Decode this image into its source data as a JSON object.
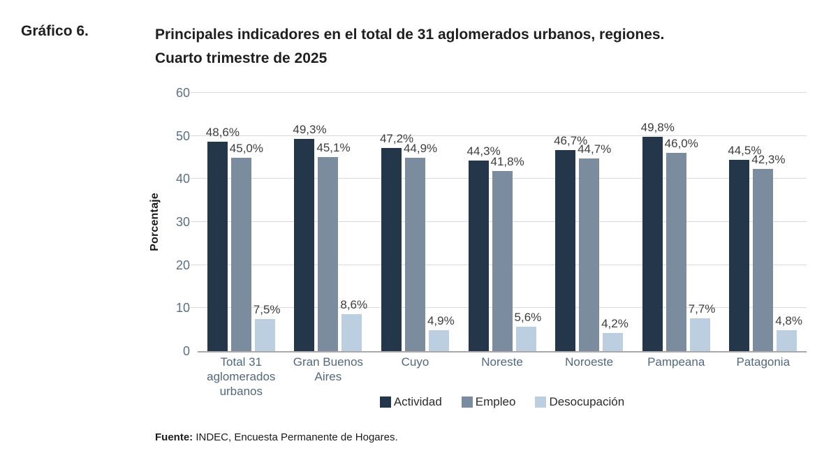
{
  "header": {
    "figure_label": "Gráfico 6.",
    "title_line1": "Principales indicadores en el total de 31 aglomerados urbanos, regiones.",
    "title_line2": "Cuarto trimestre de 2025"
  },
  "footer": {
    "source_label": "Fuente:",
    "source_text": " INDEC, Encuesta Permanente de Hogares."
  },
  "colors": {
    "actividad": "#24374a",
    "empleo": "#7c8c9f",
    "desocupacion": "#bccfe0",
    "gridline": "#d9d9d9",
    "axis_text": "#51687e",
    "data_label": "#3d3d3d"
  },
  "chart_data": {
    "type": "bar",
    "title": "Principales indicadores en el total de 31 aglomerados urbanos, regiones. Cuarto trimestre de 2025",
    "xlabel": "",
    "ylabel": "Porcentaje",
    "ylim": [
      0,
      60
    ],
    "yticks": [
      0,
      10,
      20,
      30,
      40,
      50,
      60
    ],
    "grid": true,
    "legend_position": "bottom",
    "categories": [
      "Total 31 aglomerados urbanos",
      "Gran Buenos Aires",
      "Cuyo",
      "Noreste",
      "Noroeste",
      "Pampeana",
      "Patagonia"
    ],
    "series": [
      {
        "name": "Actividad",
        "color": "#24374a",
        "values": [
          48.6,
          49.3,
          47.2,
          44.3,
          46.7,
          49.8,
          44.5
        ],
        "labels": [
          "48,6%",
          "49,3%",
          "47,2%",
          "44,3%",
          "46,7%",
          "49,8%",
          "44,5%"
        ]
      },
      {
        "name": "Empleo",
        "color": "#7c8c9f",
        "values": [
          45.0,
          45.1,
          44.9,
          41.8,
          44.7,
          46.0,
          42.3
        ],
        "labels": [
          "45,0%",
          "45,1%",
          "44,9%",
          "41,8%",
          "44,7%",
          "46,0%",
          "42,3%"
        ]
      },
      {
        "name": "Desocupación",
        "color": "#bccfe0",
        "values": [
          7.5,
          8.6,
          4.9,
          5.6,
          4.2,
          7.7,
          4.8
        ],
        "labels": [
          "7,5%",
          "8,6%",
          "4,9%",
          "5,6%",
          "4,2%",
          "7,7%",
          "4,8%"
        ]
      }
    ]
  }
}
